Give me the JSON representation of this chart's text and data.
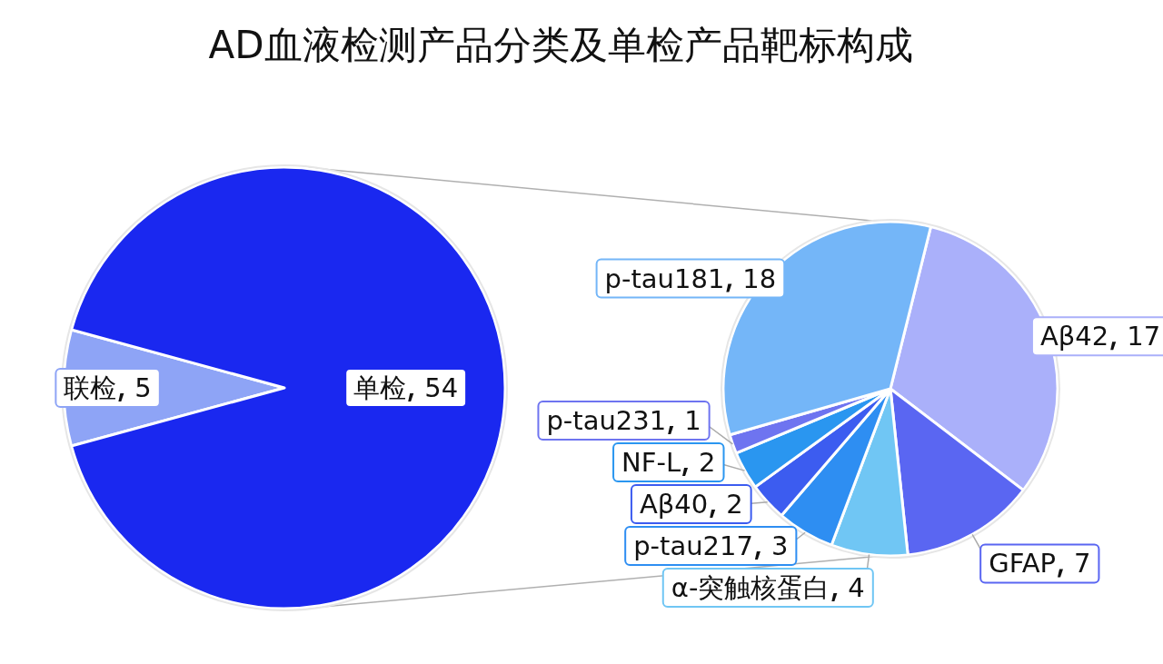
{
  "chart_data": [
    {
      "type": "pie",
      "title": "AD血液检测产品分类及单检产品靶标构成",
      "categories": [
        "联检",
        "单检"
      ],
      "values": [
        5,
        54
      ],
      "colors": [
        "#8ea4f6",
        "#1a28f0"
      ],
      "data_labels": true
    },
    {
      "type": "pie",
      "categories": [
        "Aβ42",
        "GFAP",
        "α-突触核蛋白",
        "p-tau217",
        "Aβ40",
        "NF-L",
        "p-tau231",
        "p-tau181"
      ],
      "values": [
        17,
        7,
        4,
        3,
        2,
        2,
        1,
        18
      ],
      "colors": [
        "#aab0fa",
        "#5a66f2",
        "#70c6f4",
        "#2e8ef2",
        "#3c5cf0",
        "#2a96f0",
        "#6e74f0",
        "#74b6f8"
      ],
      "data_labels": true
    }
  ]
}
